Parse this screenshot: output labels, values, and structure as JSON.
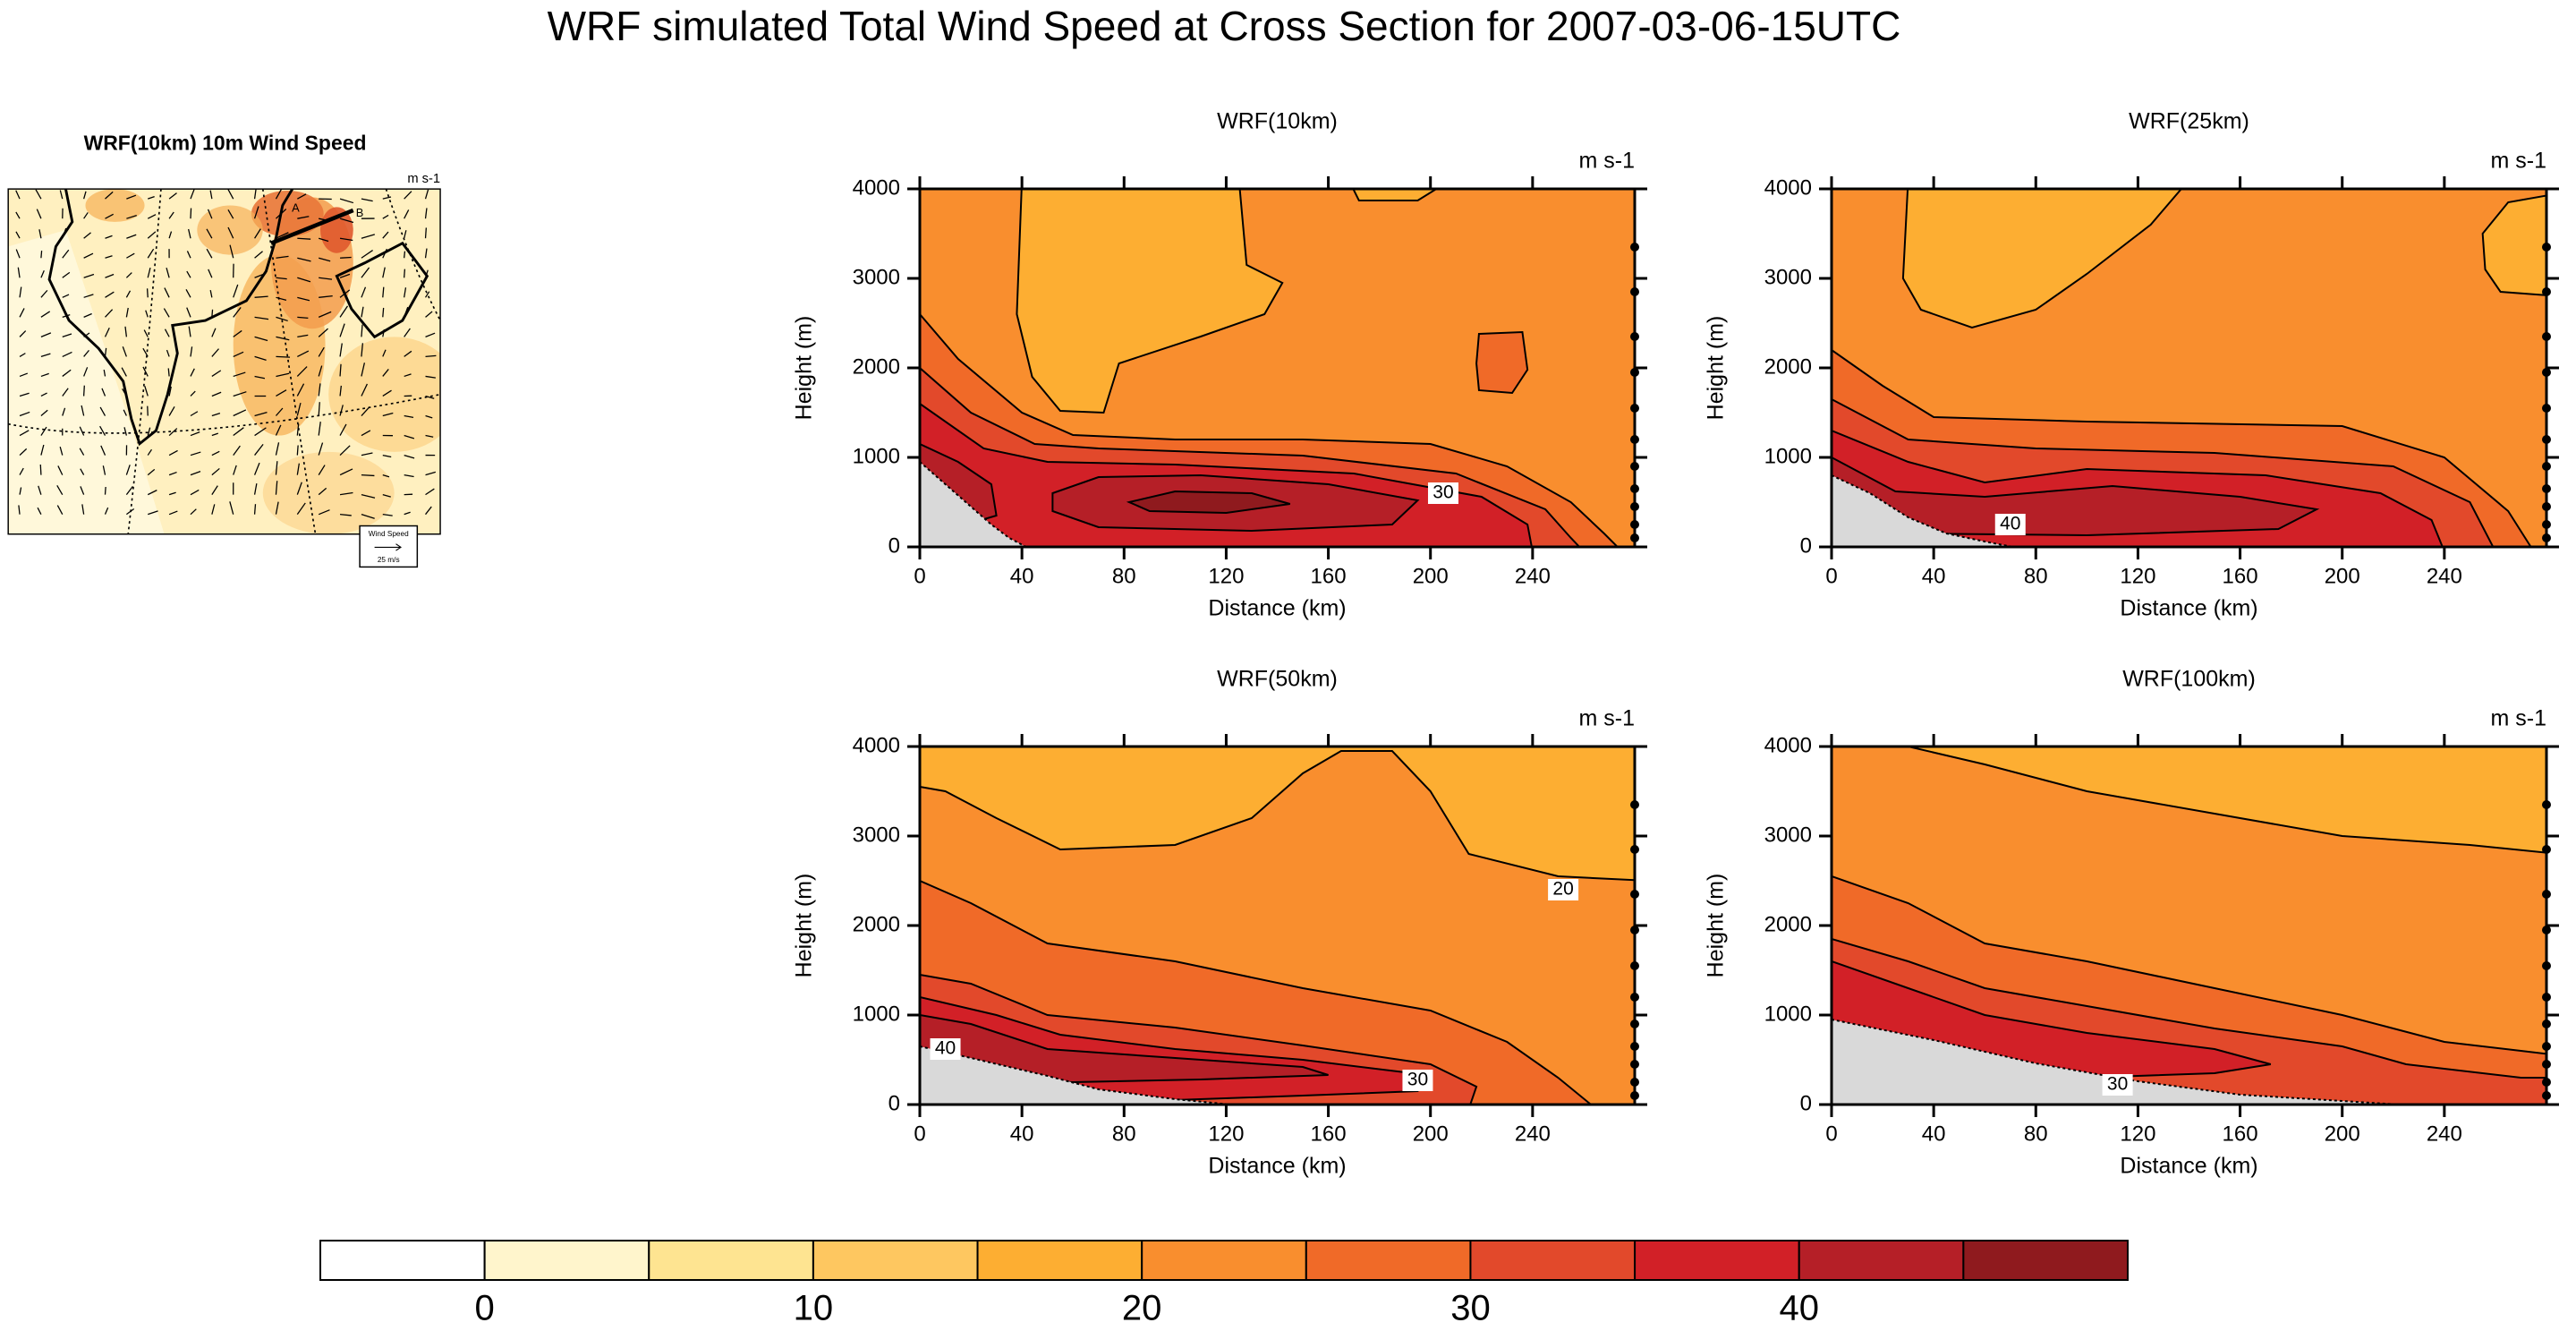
{
  "title": "WRF simulated Total Wind Speed at Cross Section for 2007-03-06-15UTC",
  "map": {
    "title": "WRF(10km) 10m Wind Speed",
    "units": "m s-1",
    "section_start": "A",
    "section_end": "B",
    "vector_legend_title": "Wind Speed",
    "vector_legend_ref": "25 m/s"
  },
  "chart_data": [
    {
      "type": "contour",
      "title": "WRF(10km)",
      "units": "m s-1",
      "x_label": "Distance (km)",
      "y_label": "Height (m)",
      "xlim": [
        0,
        280
      ],
      "ylim": [
        0,
        4000
      ],
      "xticks": [
        0,
        40,
        80,
        120,
        160,
        200,
        240
      ],
      "yticks": [
        0,
        1000,
        2000,
        3000,
        4000
      ],
      "contour_labels": [
        30
      ]
    },
    {
      "type": "contour",
      "title": "WRF(25km)",
      "units": "m s-1",
      "x_label": "Distance (km)",
      "y_label": "Height (m)",
      "xlim": [
        0,
        280
      ],
      "ylim": [
        0,
        4000
      ],
      "xticks": [
        0,
        40,
        80,
        120,
        160,
        200,
        240
      ],
      "yticks": [
        0,
        1000,
        2000,
        3000,
        4000
      ],
      "contour_labels": [
        40
      ]
    },
    {
      "type": "contour",
      "title": "WRF(50km)",
      "units": "m s-1",
      "x_label": "Distance (km)",
      "y_label": "Height (m)",
      "xlim": [
        0,
        280
      ],
      "ylim": [
        0,
        4000
      ],
      "xticks": [
        0,
        40,
        80,
        120,
        160,
        200,
        240
      ],
      "yticks": [
        0,
        1000,
        2000,
        3000,
        4000
      ],
      "contour_labels": [
        40,
        30,
        20
      ]
    },
    {
      "type": "contour",
      "title": "WRF(100km)",
      "units": "m s-1",
      "x_label": "Distance (km)",
      "y_label": "Height (m)",
      "xlim": [
        0,
        280
      ],
      "ylim": [
        0,
        4000
      ],
      "xticks": [
        0,
        40,
        80,
        120,
        160,
        200,
        240
      ],
      "yticks": [
        0,
        1000,
        2000,
        3000,
        4000
      ],
      "contour_labels": [
        30
      ]
    }
  ],
  "colorbar": {
    "clim": [
      -5,
      50
    ],
    "levels": [
      0,
      5,
      10,
      15,
      20,
      25,
      30,
      35,
      40,
      45
    ],
    "colors": [
      "#ffffff",
      "#fff5cc",
      "#fee491",
      "#fec760",
      "#fdae32",
      "#f98e2e",
      "#f06a28",
      "#e2492b",
      "#d22027",
      "#b51f27",
      "#8f1a1e"
    ],
    "ticks": [
      0,
      10,
      20,
      30,
      40
    ]
  }
}
